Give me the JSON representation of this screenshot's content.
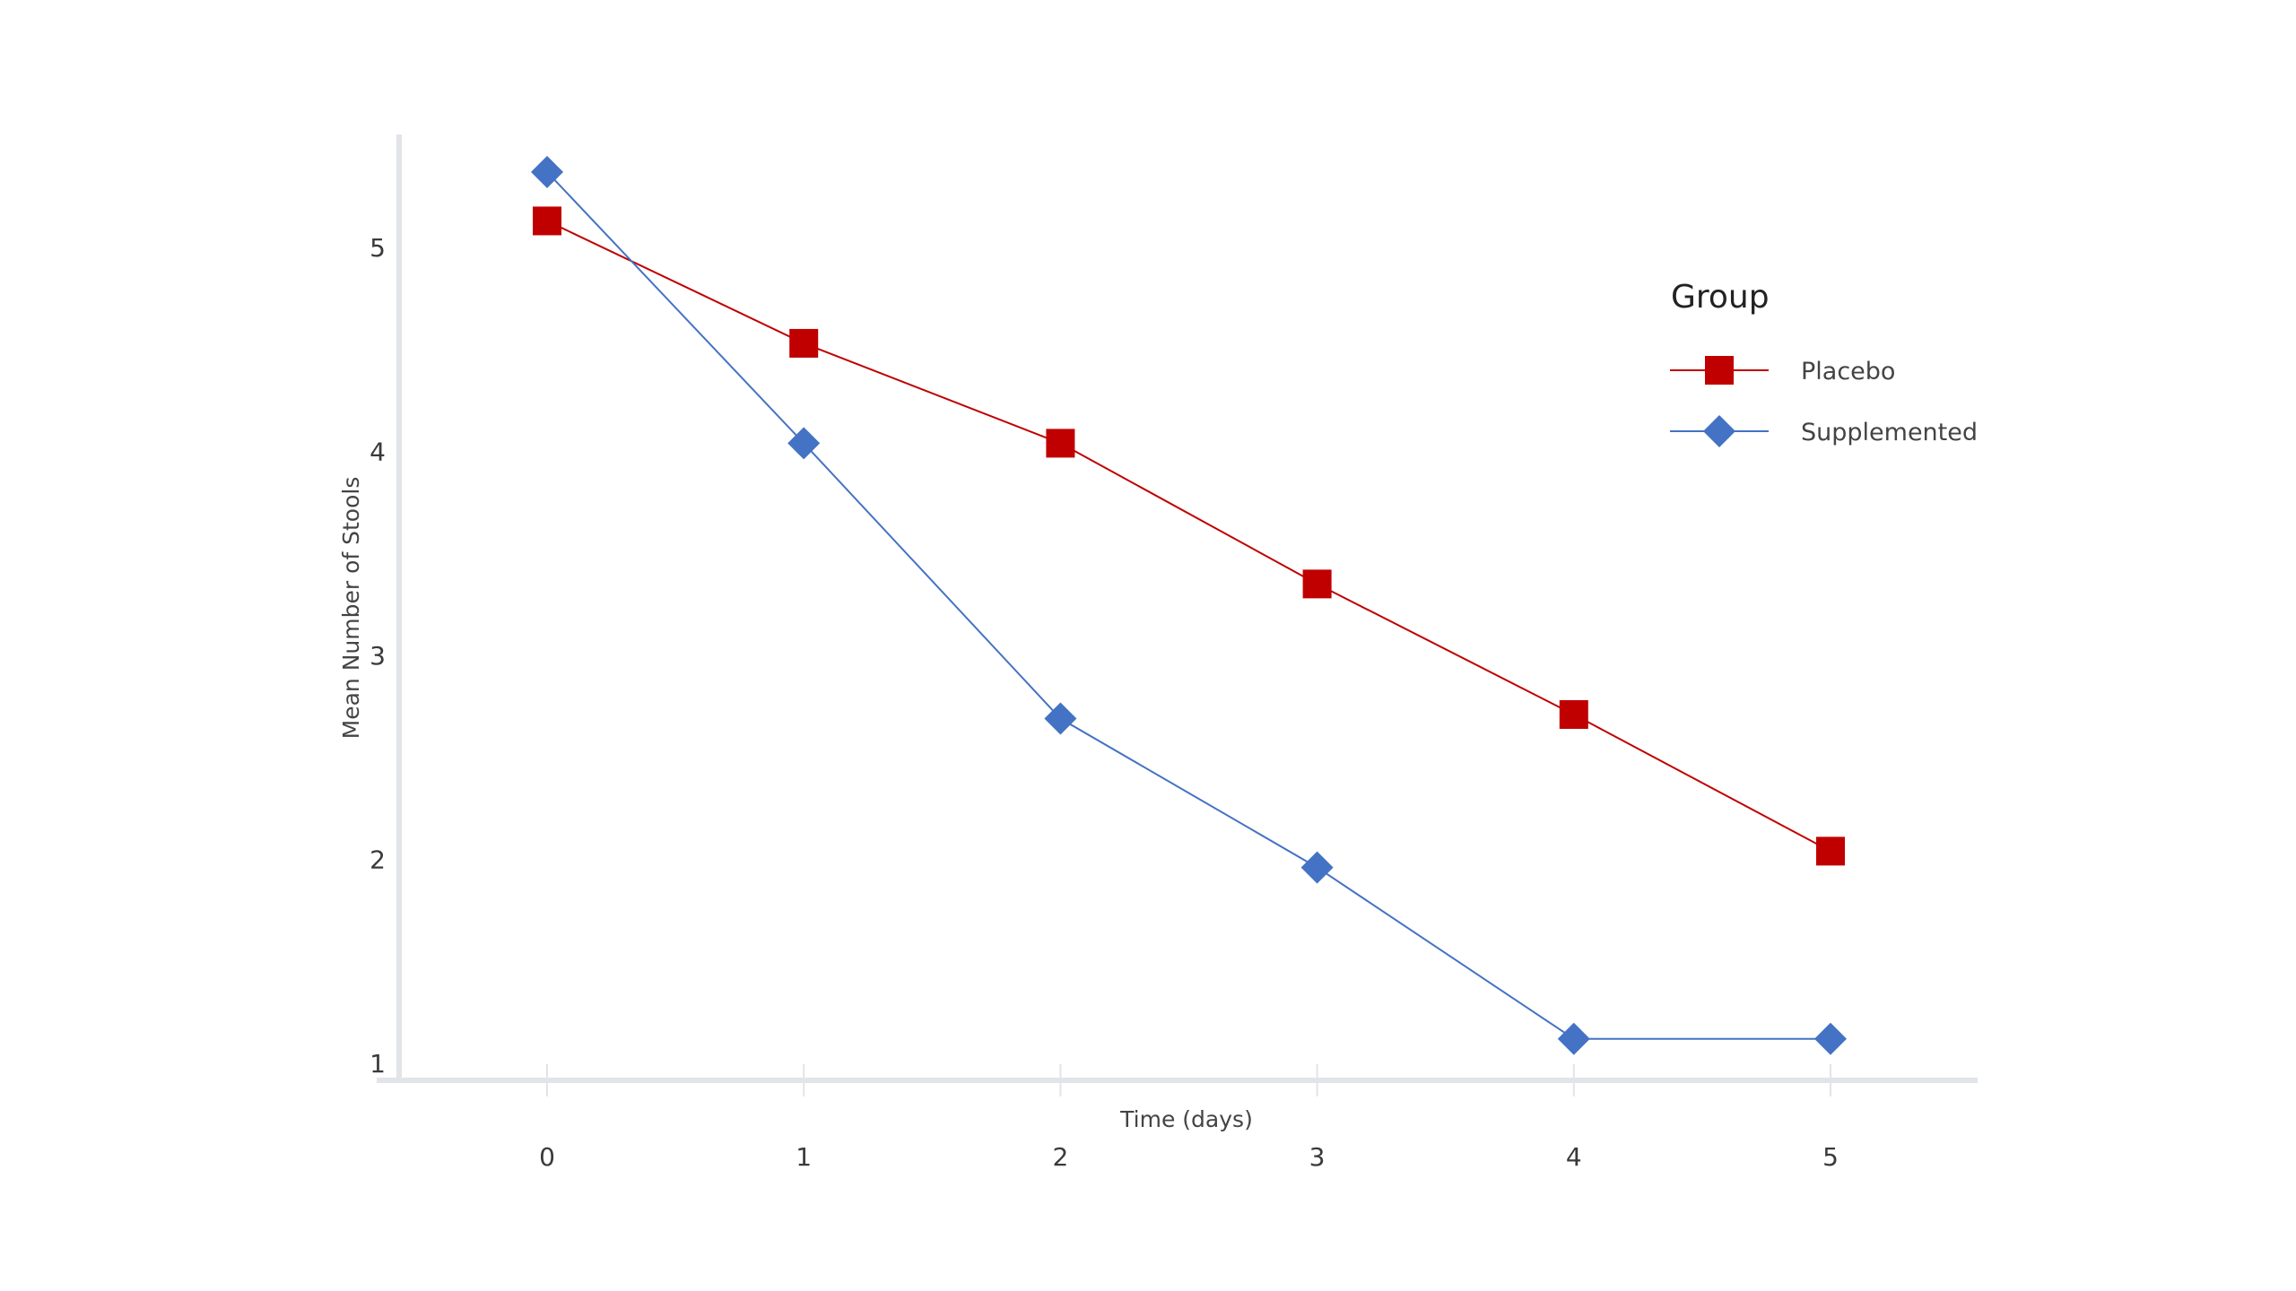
{
  "chart_data": {
    "type": "line",
    "title": "",
    "xlabel": "Time (days)",
    "ylabel": "Mean Number of Stools",
    "x": [
      0,
      1,
      2,
      3,
      4,
      5
    ],
    "x_ticks": [
      "0",
      "1",
      "2",
      "3",
      "4",
      "5"
    ],
    "y_ticks": [
      "1",
      "2",
      "3",
      "4",
      "5"
    ],
    "xlim": [
      -0.6,
      5.6
    ],
    "ylim": [
      0.92,
      5.56
    ],
    "grid": false,
    "legend": {
      "title": "Group",
      "placement": "right"
    },
    "series": [
      {
        "name": "Placebo",
        "marker": "square",
        "color": "#c00000",
        "values": [
          5.13,
          4.53,
          4.04,
          3.35,
          2.71,
          2.04
        ]
      },
      {
        "name": "Supplemented",
        "marker": "diamond",
        "color": "#4472c4",
        "values": [
          5.37,
          4.04,
          2.69,
          1.96,
          1.12,
          1.12
        ]
      }
    ]
  }
}
